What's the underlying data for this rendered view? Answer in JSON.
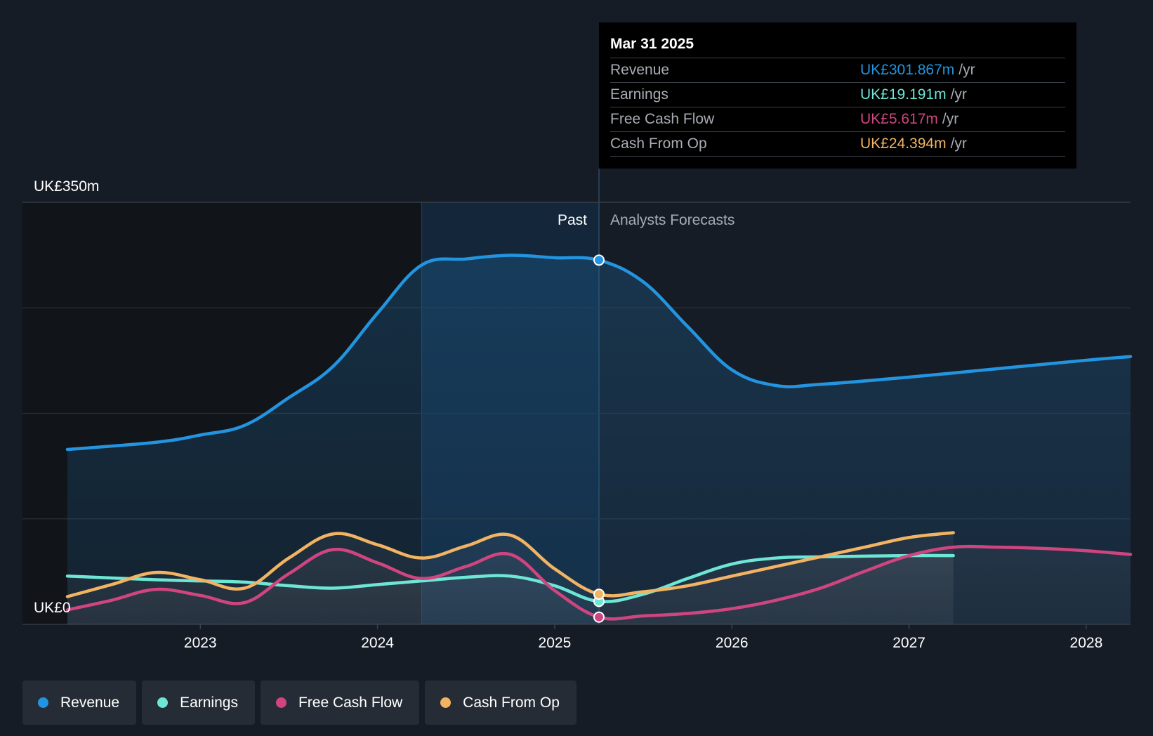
{
  "colors": {
    "revenue": "#2394df",
    "earnings": "#6ee6d6",
    "free_cash_flow": "#d0457f",
    "cash_from_op": "#f2b463",
    "background": "#161c26"
  },
  "tooltip": {
    "date": "Mar 31 2025",
    "rows": [
      {
        "label": "Revenue",
        "value": "UK£301.867m",
        "unit": "/yr",
        "color": "#2394df"
      },
      {
        "label": "Earnings",
        "value": "UK£19.191m",
        "unit": "/yr",
        "color": "#6ee6d6"
      },
      {
        "label": "Free Cash Flow",
        "value": "UK£5.617m",
        "unit": "/yr",
        "color": "#d0457f"
      },
      {
        "label": "Cash From Op",
        "value": "UK£24.394m",
        "unit": "/yr",
        "color": "#f2b463"
      }
    ]
  },
  "legend": [
    {
      "label": "Revenue",
      "color": "#2394df"
    },
    {
      "label": "Earnings",
      "color": "#6ee6d6"
    },
    {
      "label": "Free Cash Flow",
      "color": "#d0457f"
    },
    {
      "label": "Cash From Op",
      "color": "#f2b463"
    }
  ],
  "chart_data": {
    "type": "line",
    "y_top_label": "UK£350m",
    "y_bottom_label": "UK£0",
    "ylim": [
      0,
      350
    ],
    "xlim": [
      2022.25,
      2028.25
    ],
    "x_ticks": [
      "2023",
      "2024",
      "2025",
      "2026",
      "2027",
      "2028"
    ],
    "x_tick_values": [
      2023,
      2024,
      2025,
      2026,
      2027,
      2028
    ],
    "past_label": "Past",
    "forecast_label": "Analysts Forecasts",
    "divider_x": 2025.25,
    "highlight_start_x": 2024.25,
    "grid": true,
    "legend_position": "bottom-left",
    "series": [
      {
        "name": "Revenue",
        "color": "#2394df",
        "key": "revenue",
        "x": [
          2022.25,
          2022.75,
          2023.0,
          2023.25,
          2023.5,
          2023.75,
          2024.0,
          2024.25,
          2024.5,
          2024.75,
          2025.0,
          2025.25,
          2025.5,
          2025.75,
          2026.0,
          2026.25,
          2026.5,
          2027.0,
          2027.5,
          2028.0,
          2028.25
        ],
        "y": [
          145,
          151,
          157,
          165,
          188,
          214,
          258,
          298,
          303,
          306,
          304,
          302,
          284,
          247,
          211,
          198,
          199,
          205,
          212,
          219,
          222
        ]
      },
      {
        "name": "Earnings",
        "color": "#6ee6d6",
        "key": "earnings",
        "x": [
          2022.25,
          2022.75,
          2023.0,
          2023.25,
          2023.5,
          2023.75,
          2024.0,
          2024.25,
          2024.5,
          2024.75,
          2025.0,
          2025.25,
          2025.5,
          2025.75,
          2026.0,
          2026.25,
          2026.5,
          2027.0,
          2027.25
        ],
        "y": [
          40,
          37,
          36,
          35,
          32,
          30,
          33,
          36,
          39,
          40,
          32,
          19,
          25,
          38,
          50,
          55,
          56,
          57,
          57
        ]
      },
      {
        "name": "Free Cash Flow",
        "color": "#d0457f",
        "key": "free_cash_flow",
        "x": [
          2022.25,
          2022.5,
          2022.75,
          2023.0,
          2023.25,
          2023.5,
          2023.75,
          2024.0,
          2024.25,
          2024.5,
          2024.75,
          2025.0,
          2025.25,
          2025.5,
          2025.75,
          2026.0,
          2026.25,
          2026.5,
          2026.75,
          2027.0,
          2027.25,
          2027.5,
          2027.75,
          2028.0,
          2028.25
        ],
        "y": [
          12,
          20,
          29,
          24,
          18,
          42,
          62,
          51,
          38,
          48,
          58,
          28,
          6,
          7,
          9,
          13,
          20,
          30,
          44,
          57,
          64,
          64,
          63,
          61,
          58
        ]
      },
      {
        "name": "Cash From Op",
        "color": "#f2b463",
        "key": "cash_from_op",
        "x": [
          2022.25,
          2022.5,
          2022.75,
          2023.0,
          2023.25,
          2023.5,
          2023.75,
          2024.0,
          2024.25,
          2024.5,
          2024.75,
          2025.0,
          2025.25,
          2025.5,
          2025.75,
          2026.0,
          2026.25,
          2026.5,
          2026.75,
          2027.0,
          2027.25
        ],
        "y": [
          23,
          33,
          43,
          37,
          30,
          55,
          75,
          66,
          55,
          65,
          74,
          46,
          25,
          27,
          32,
          40,
          48,
          56,
          64,
          72,
          76
        ]
      }
    ]
  }
}
